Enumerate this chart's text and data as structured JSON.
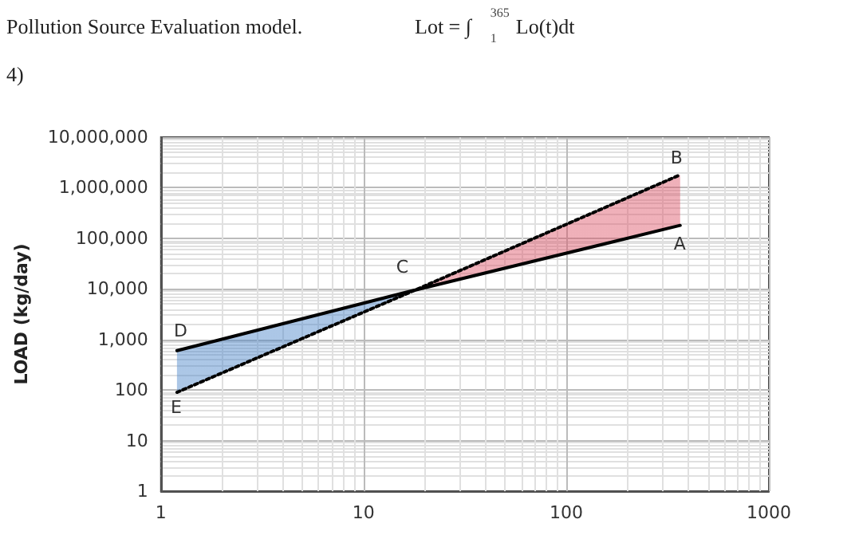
{
  "chart_data": {
    "type": "line",
    "ylabel": "LOAD (kg/day)",
    "annotations": [
      "Pollution Source Evaluation model.",
      "4)",
      "Lot = ∫$_{1}$$^{365}$ Lo(t)dt",
      {
        "text": "A",
        "x": 365,
        "y": 180000
      },
      {
        "text": "B",
        "x": 365,
        "y": 1800000
      },
      {
        "text": "C",
        "x": 18,
        "y": 9500
      },
      {
        "text": "D",
        "x": 1.2,
        "y": 600
      },
      {
        "text": "E",
        "x": 1.2,
        "y": 90
      }
    ],
    "x": [
      1.2,
      18,
      365
    ],
    "series": [
      {
        "color": "#000000",
        "line_style": "solid",
        "values": [
          600,
          9500,
          180000
        ]
      },
      {
        "color": "#000000",
        "line_style": "dotted",
        "values": [
          90,
          9500,
          1800000
        ],
        "lower": [
          90,
          9500,
          180000
        ],
        "upper": [
          600,
          9500,
          1800000
        ]
      }
    ],
    "log": "xy",
    "xlim": [
      1,
      1000
    ],
    "xticks": [
      1,
      10,
      100,
      1000
    ],
    "ylim": [
      1,
      10000000
    ],
    "yticks": [
      1,
      10,
      100,
      {
        "value": 1000,
        "label": "1,000"
      },
      {
        "value": 10000,
        "label": "10,000"
      },
      {
        "value": 100000,
        "label": "100,000"
      },
      {
        "value": 1000000,
        "label": "1,000,000"
      },
      {
        "value": 10000000,
        "label": "10,000,000"
      }
    ],
    "grid": true,
    "marker": "none"
  }
}
